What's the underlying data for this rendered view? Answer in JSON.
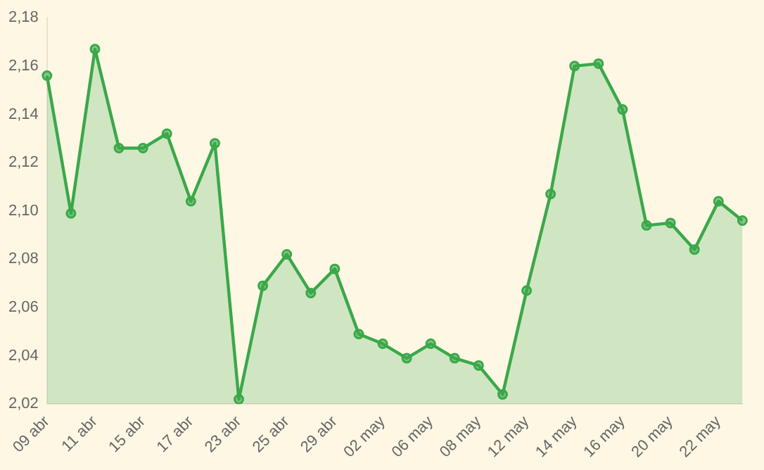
{
  "chart_data": {
    "type": "area",
    "categories": [
      "09 abr",
      null,
      "11 abr",
      null,
      "15 abr",
      null,
      "17 abr",
      null,
      "23 abr",
      null,
      "25 abr",
      null,
      "29 abr",
      null,
      "02 may",
      null,
      "06 may",
      null,
      "08 may",
      null,
      "12 may",
      null,
      "14 may",
      null,
      "16 may",
      null,
      "20 may",
      null,
      "22 may",
      null
    ],
    "series": [
      {
        "color": "#3aa84a",
        "values": [
          2.156,
          2.099,
          2.167,
          2.126,
          2.126,
          2.132,
          2.104,
          2.128,
          2.022,
          2.069,
          2.082,
          2.066,
          2.076,
          2.049,
          2.045,
          2.039,
          2.045,
          2.039,
          2.036,
          2.024,
          2.067,
          2.107,
          2.16,
          2.161,
          2.142,
          2.094,
          2.095,
          2.084,
          2.104,
          2.096
        ]
      }
    ],
    "ylim": [
      2.02,
      2.18
    ],
    "yticks": [
      {
        "value": 2.02,
        "label": "2,02"
      },
      {
        "value": 2.04,
        "label": "2,04"
      },
      {
        "value": 2.06,
        "label": "2,06"
      },
      {
        "value": 2.08,
        "label": "2,08"
      },
      {
        "value": 2.1,
        "label": "2,10"
      },
      {
        "value": 2.12,
        "label": "2,12"
      },
      {
        "value": 2.14,
        "label": "2,14"
      },
      {
        "value": 2.16,
        "label": "2,16"
      },
      {
        "value": 2.18,
        "label": "2,18"
      }
    ],
    "grid": false,
    "legend": false,
    "marker": "circle"
  }
}
